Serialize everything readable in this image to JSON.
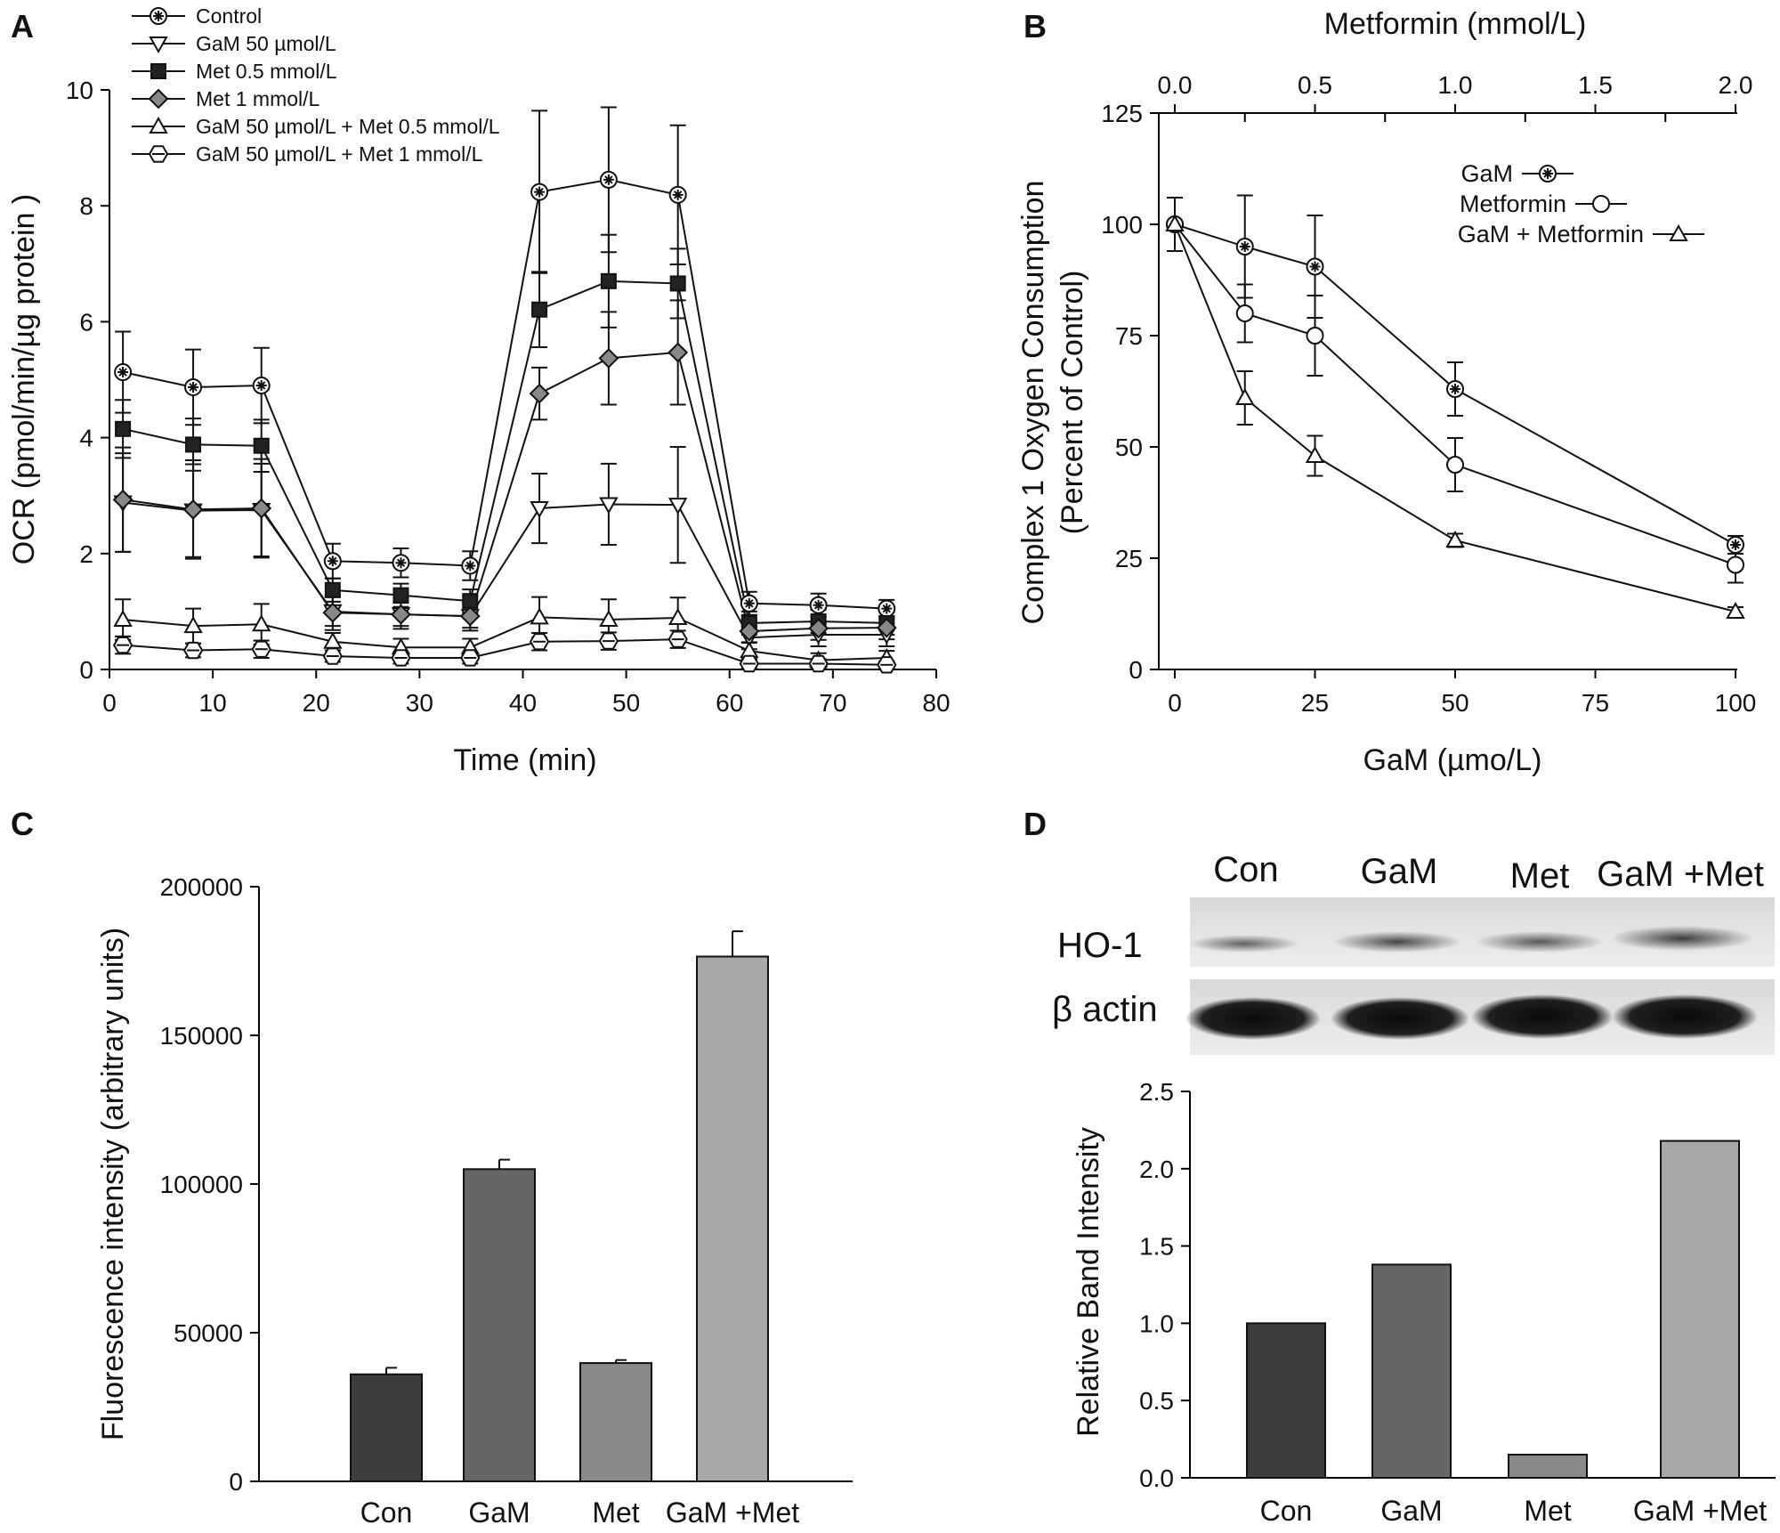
{
  "panels": {
    "A": {
      "letter": "A",
      "xlabel": "Time (min)",
      "ylabel": "OCR (pmol/min/µg protein )",
      "xticks": [
        "0",
        "10",
        "20",
        "30",
        "40",
        "50",
        "60",
        "70",
        "80"
      ],
      "yticks": [
        "0",
        "2",
        "4",
        "6",
        "8",
        "10"
      ]
    },
    "B": {
      "letter": "B",
      "xlabel": "GaM (µmo/L)",
      "xlabel_top": "Metformin (mmol/L)",
      "ylabel_line1": "Complex 1 Oxygen Consumption",
      "ylabel_line2": "(Percent of Control)",
      "xticks": [
        "0",
        "25",
        "50",
        "75",
        "100"
      ],
      "xticks_top": [
        "0.0",
        "0.5",
        "1.0",
        "1.5",
        "2.0"
      ],
      "yticks": [
        "0",
        "25",
        "50",
        "75",
        "100",
        "125"
      ]
    },
    "C": {
      "letter": "C",
      "ylabel": "Fluorescence intensity (arbitrary units)",
      "yticks": [
        "0",
        "50000",
        "100000",
        "150000",
        "200000"
      ]
    },
    "D": {
      "letter": "D",
      "ylabel": "Relative Band Intensity",
      "yticks": [
        "0.0",
        "0.5",
        "1.0",
        "1.5",
        "2.0",
        "2.5"
      ],
      "blot_lanes": [
        "Con",
        "GaM",
        "Met",
        "GaM +Met"
      ],
      "blot_rows": [
        "HO-1",
        "β actin"
      ]
    }
  },
  "chart_data": [
    {
      "panel": "A",
      "type": "line",
      "xlabel": "Time (min)",
      "ylabel": "OCR (pmol/min/µg protein )",
      "xlim": [
        0,
        80
      ],
      "ylim": [
        0,
        10
      ],
      "legend_position": "top-left",
      "x": [
        1.3,
        8.1,
        14.7,
        21.6,
        28.2,
        34.9,
        41.6,
        48.3,
        55.0,
        61.9,
        68.6,
        75.2
      ],
      "series": [
        {
          "name": "Control",
          "marker": "circle-cross",
          "values": [
            5.13,
            4.87,
            4.9,
            1.87,
            1.84,
            1.79,
            8.24,
            8.45,
            8.19,
            1.14,
            1.11,
            1.05
          ],
          "errors": [
            0.7,
            0.65,
            0.65,
            0.3,
            0.25,
            0.25,
            1.4,
            1.25,
            1.2,
            0.2,
            0.2,
            0.15
          ]
        },
        {
          "name": "GaM 50 µmol/L",
          "marker": "triangle-down",
          "values": [
            2.88,
            2.74,
            2.75,
            1.0,
            0.95,
            0.92,
            2.78,
            2.85,
            2.84,
            0.55,
            0.6,
            0.6
          ],
          "errors": [
            0.85,
            0.8,
            0.8,
            0.25,
            0.2,
            0.2,
            0.6,
            0.7,
            1.0,
            0.2,
            0.2,
            0.2
          ]
        },
        {
          "name": "Met 0.5 mmol/L",
          "marker": "square",
          "values": [
            4.15,
            3.88,
            3.86,
            1.37,
            1.28,
            1.18,
            6.21,
            6.7,
            6.66,
            0.8,
            0.83,
            0.8
          ],
          "errors": [
            0.5,
            0.45,
            0.45,
            0.2,
            0.2,
            0.2,
            0.65,
            0.8,
            0.6,
            0.2,
            0.2,
            0.2
          ]
        },
        {
          "name": "Met 1 mmol/L",
          "marker": "diamond",
          "values": [
            2.93,
            2.76,
            2.78,
            0.98,
            0.95,
            0.92,
            4.76,
            5.37,
            5.47,
            0.66,
            0.71,
            0.72
          ],
          "errors": [
            0.9,
            0.85,
            0.85,
            0.3,
            0.25,
            0.25,
            0.45,
            0.8,
            0.9,
            0.2,
            0.2,
            0.2
          ]
        },
        {
          "name": "GaM 50 µmol/L + Met 0.5 mmol/L",
          "marker": "triangle-up",
          "values": [
            0.86,
            0.75,
            0.78,
            0.48,
            0.38,
            0.38,
            0.9,
            0.86,
            0.89,
            0.32,
            0.16,
            0.2
          ],
          "errors": [
            0.35,
            0.3,
            0.35,
            0.15,
            0.15,
            0.15,
            0.35,
            0.35,
            0.35,
            0.15,
            0.12,
            0.12
          ]
        },
        {
          "name": "GaM 50 µmol/L + Met 1 mmol/L",
          "marker": "hexagon",
          "values": [
            0.42,
            0.33,
            0.35,
            0.23,
            0.2,
            0.2,
            0.48,
            0.49,
            0.52,
            0.1,
            0.1,
            0.08
          ],
          "errors": [
            0.15,
            0.12,
            0.15,
            0.1,
            0.1,
            0.1,
            0.15,
            0.15,
            0.15,
            0.08,
            0.08,
            0.06
          ]
        }
      ]
    },
    {
      "panel": "B",
      "type": "line",
      "xlabel": "GaM (µmo/L)",
      "xlabel_top": "Metformin (mmol/L)",
      "ylabel": "Complex 1 Oxygen Consumption (Percent of Control)",
      "xlim": [
        0,
        100
      ],
      "xlim_top": [
        0,
        2
      ],
      "ylim": [
        0,
        125
      ],
      "legend_position": "top-right",
      "series": [
        {
          "name": "GaM",
          "marker": "circle-cross",
          "x": [
            0,
            12.5,
            25,
            50,
            100
          ],
          "values": [
            100,
            95,
            90.5,
            63,
            28
          ],
          "errors": [
            6,
            11.5,
            11.5,
            6,
            2
          ]
        },
        {
          "name": "Metformin",
          "marker": "open-circle",
          "x": [
            0,
            12.5,
            25,
            50,
            100
          ],
          "values": [
            100,
            80,
            75,
            46,
            23.5
          ],
          "errors": [
            6,
            6.5,
            9,
            6,
            4
          ]
        },
        {
          "name": "GaM + Metformin",
          "marker": "triangle-up",
          "x": [
            0,
            12.5,
            25,
            50,
            100
          ],
          "values": [
            100,
            61,
            48,
            29,
            13
          ],
          "errors": [
            6,
            6,
            4.5,
            1.5,
            1
          ]
        }
      ]
    },
    {
      "panel": "C",
      "type": "bar",
      "ylabel": "Fluorescence intensity (arbitrary units)",
      "categories": [
        "Con",
        "GaM",
        "Met",
        "GaM +Met"
      ],
      "values": [
        36000,
        105000,
        39800,
        176500
      ],
      "errors": [
        2200,
        3200,
        1000,
        8500
      ],
      "colors": [
        "#3d3d3d",
        "#666666",
        "#8a8a8a",
        "#a8a8a8"
      ],
      "ylim": [
        0,
        200000
      ]
    },
    {
      "panel": "D",
      "type": "bar",
      "ylabel": "Relative Band Intensity",
      "categories": [
        "Con",
        "GaM",
        "Met",
        "GaM +Met"
      ],
      "values": [
        1.0,
        1.38,
        0.15,
        2.18
      ],
      "colors": [
        "#3d3d3d",
        "#666666",
        "#8a8a8a",
        "#a8a8a8"
      ],
      "ylim": [
        0,
        2.5
      ]
    }
  ]
}
